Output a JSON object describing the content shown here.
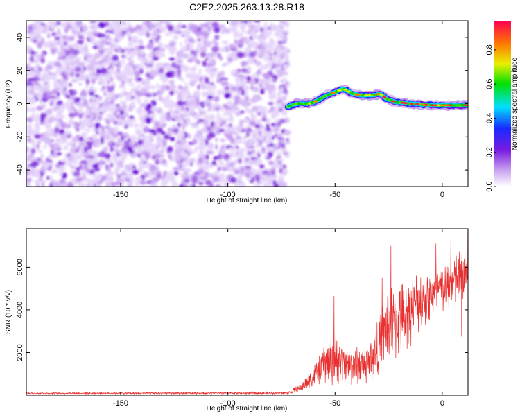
{
  "title": "C2E2.2025.263.13.28.R18",
  "chart_data": [
    {
      "type": "heatmap",
      "xlabel": "Height of straight line (km)",
      "ylabel": "Frequency (Hz)",
      "xlim": [
        -194,
        12
      ],
      "ylim": [
        -50,
        50
      ],
      "xticks": [
        -150,
        -100,
        -50,
        0
      ],
      "yticks": [
        -40,
        -20,
        0,
        20,
        40
      ],
      "noise_region": [
        -194,
        -72
      ],
      "signal_track": [
        {
          "x": -72,
          "y": -2
        },
        {
          "x": -68,
          "y": 0
        },
        {
          "x": -62,
          "y": 0
        },
        {
          "x": -58,
          "y": 2
        },
        {
          "x": -54,
          "y": 5
        },
        {
          "x": -50,
          "y": 7
        },
        {
          "x": -46,
          "y": 9
        },
        {
          "x": -42,
          "y": 6
        },
        {
          "x": -38,
          "y": 5
        },
        {
          "x": -33,
          "y": 5
        },
        {
          "x": -29,
          "y": 6
        },
        {
          "x": -26,
          "y": 3
        },
        {
          "x": -22,
          "y": 1
        },
        {
          "x": -15,
          "y": 0
        },
        {
          "x": -5,
          "y": -1
        },
        {
          "x": 5,
          "y": -1
        },
        {
          "x": 12,
          "y": -1
        }
      ],
      "colorbar": {
        "label": "Normalized spectral amplitude",
        "range": [
          0,
          0.97
        ],
        "ticks": [
          0.0,
          0.2,
          0.4,
          0.6,
          0.8
        ]
      }
    },
    {
      "type": "line",
      "xlabel": "Height of straight line (km)",
      "ylabel": "SNR (10 * v/v)",
      "xlim": [
        -194,
        12
      ],
      "ylim": [
        0,
        7800
      ],
      "xticks": [
        -150,
        -100,
        -50,
        0
      ],
      "yticks": [
        2000,
        4000,
        6000
      ],
      "series": [
        {
          "name": "SNR",
          "color": "#e83030",
          "envelope": [
            {
              "x": -194,
              "mean": 90,
              "spread": 40
            },
            {
              "x": -72,
              "mean": 100,
              "spread": 60
            },
            {
              "x": -66,
              "mean": 350,
              "spread": 250
            },
            {
              "x": -60,
              "mean": 900,
              "spread": 600
            },
            {
              "x": -55,
              "mean": 1500,
              "spread": 1100
            },
            {
              "x": -50,
              "mean": 1700,
              "spread": 1500
            },
            {
              "x": -45,
              "mean": 1500,
              "spread": 1100
            },
            {
              "x": -40,
              "mean": 1400,
              "spread": 1100
            },
            {
              "x": -35,
              "mean": 1500,
              "spread": 1200
            },
            {
              "x": -30,
              "mean": 2200,
              "spread": 1700
            },
            {
              "x": -25,
              "mean": 3300,
              "spread": 2200
            },
            {
              "x": -20,
              "mean": 3500,
              "spread": 2000
            },
            {
              "x": -15,
              "mean": 4000,
              "spread": 1800
            },
            {
              "x": -10,
              "mean": 4500,
              "spread": 1600
            },
            {
              "x": -5,
              "mean": 4700,
              "spread": 1500
            },
            {
              "x": 0,
              "mean": 5000,
              "spread": 1400
            },
            {
              "x": 5,
              "mean": 5300,
              "spread": 1500
            },
            {
              "x": 12,
              "mean": 5800,
              "spread": 1600
            }
          ],
          "peaks": [
            {
              "x": -50.5,
              "y": 4650
            },
            {
              "x": -28,
              "y": 5500
            },
            {
              "x": -24,
              "y": 7000
            },
            {
              "x": -3,
              "y": 7100
            },
            {
              "x": 4,
              "y": 7350
            },
            {
              "x": 12,
              "y": 7800
            },
            {
              "x": 9,
              "y": 2750
            }
          ]
        }
      ]
    }
  ]
}
